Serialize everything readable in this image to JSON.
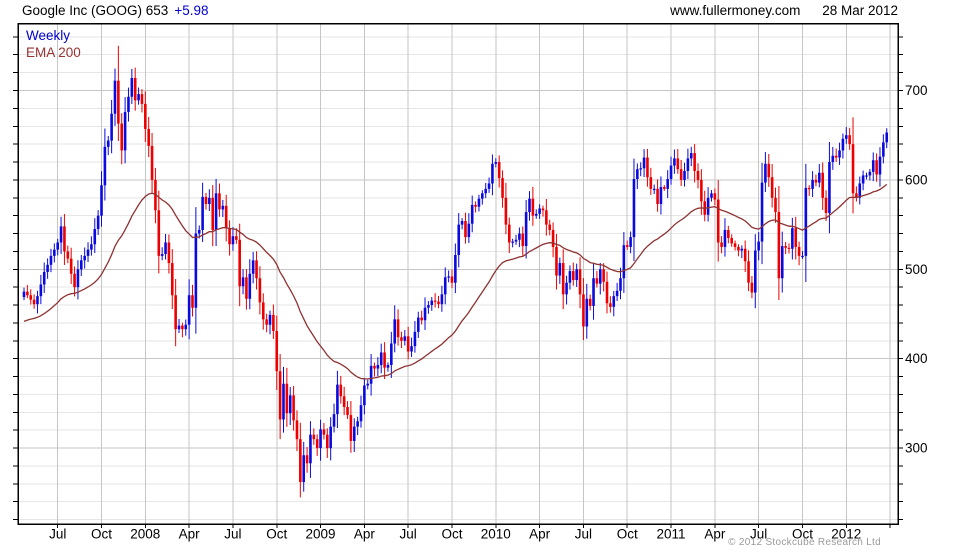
{
  "header": {
    "title": "Google Inc (GOOG) 653",
    "change": "+5.98",
    "website": "www.fullermoney.com",
    "date": "28 Mar 2012"
  },
  "legend": {
    "series": "Weekly",
    "ema": "EMA 200"
  },
  "footer": {
    "copyright": "© 2012 Stockcube Research Ltd"
  },
  "colors": {
    "up": "#0a0ae0",
    "down": "#ee0000",
    "ema": "#8e3232",
    "grid_major": "#c6c6c6",
    "grid_minor": "#e6e6e6",
    "axis": "#000000",
    "text": "#000000",
    "change_text": "#0000cc",
    "legend_series": "#0000cc",
    "legend_ema": "#993333",
    "copyright": "#9a9a9a"
  },
  "chart_data": {
    "type": "candlestick",
    "interval": "weekly",
    "title": "Google Inc (GOOG) 653 +5.98",
    "xlabel": "",
    "ylabel": "",
    "legend_position": "top-left",
    "grid": true,
    "y_axis": {
      "side": "right",
      "tick_labels": [
        700,
        600,
        500,
        400,
        300
      ],
      "minor_step": 20,
      "minor_range": [
        220,
        760
      ],
      "visible_range": [
        215,
        774
      ]
    },
    "x_axis": {
      "labels": [
        "Jul",
        "Oct",
        "2008",
        "Apr",
        "Jul",
        "Oct",
        "2009",
        "Apr",
        "Jul",
        "Oct",
        "2010",
        "Apr",
        "Jul",
        "Oct",
        "2011",
        "Apr",
        "Jul",
        "Oct",
        "2012"
      ],
      "label_weeks": [
        10,
        23,
        36,
        49,
        62,
        75,
        88,
        101,
        114,
        127,
        140,
        153,
        166,
        179,
        192,
        205,
        218,
        231,
        244
      ],
      "quarter_weeks": [
        10,
        23,
        36,
        49,
        62,
        75,
        88,
        101,
        114,
        127,
        140,
        153,
        166,
        179,
        192,
        205,
        218,
        231,
        244,
        257
      ]
    },
    "weekly_close": [
      475,
      471,
      466,
      461,
      470,
      483,
      497,
      505,
      515,
      522,
      530,
      548,
      520,
      512,
      495,
      480,
      500,
      510,
      515,
      522,
      528,
      545,
      560,
      594,
      637,
      644,
      674,
      711,
      663,
      633,
      676,
      693,
      714,
      689,
      696,
      685,
      657,
      638,
      600,
      566,
      515,
      517,
      530,
      507,
      471,
      433,
      437,
      433,
      438,
      471,
      457,
      540,
      544,
      581,
      573,
      580,
      544,
      585,
      567,
      571,
      546,
      528,
      537,
      533,
      481,
      491,
      467,
      495,
      510,
      490,
      463,
      444,
      438,
      449,
      431,
      386,
      332,
      372,
      339,
      359,
      331,
      310,
      262,
      292,
      283,
      315,
      310,
      300,
      321,
      315,
      300,
      324,
      338,
      371,
      358,
      346,
      337,
      308,
      324,
      330,
      348,
      370,
      372,
      392,
      389,
      393,
      407,
      390,
      393,
      417,
      444,
      424,
      420,
      425,
      408,
      414,
      430,
      446,
      443,
      457,
      460,
      465,
      464,
      461,
      472,
      491,
      492,
      485,
      516,
      550,
      554,
      536,
      551,
      572,
      570,
      579,
      585,
      590,
      596,
      618,
      620,
      602,
      580,
      550,
      530,
      531,
      533,
      540,
      526,
      564,
      579,
      560,
      562,
      568,
      566,
      550,
      544,
      525,
      493,
      507,
      472,
      485,
      498,
      488,
      500,
      472,
      436,
      467,
      459,
      490,
      484,
      500,
      486,
      462,
      458,
      470,
      476,
      490,
      527,
      525,
      536,
      601,
      612,
      613,
      625,
      603,
      590,
      590,
      573,
      592,
      590,
      601,
      616,
      624,
      612,
      600,
      610,
      624,
      630,
      610,
      600,
      576,
      561,
      580,
      585,
      578,
      530,
      525,
      544,
      535,
      529,
      525,
      521,
      523,
      509,
      485,
      474,
      521,
      531,
      597,
      618,
      603,
      580,
      564,
      490,
      526,
      524,
      523,
      546,
      525,
      515,
      515,
      591,
      590,
      600,
      597,
      608,
      580,
      563,
      620,
      627,
      625,
      633,
      646,
      650,
      640,
      585,
      580,
      596,
      605,
      605,
      609,
      622,
      606,
      626,
      642,
      653
    ],
    "spikes": {
      "28": 750,
      "82": 247,
      "166": 433,
      "246": 670
    },
    "ema": {
      "label": "EMA 200",
      "period_weeks": 40,
      "start_value": 440
    },
    "last_price": 653,
    "last_change": 5.98
  }
}
